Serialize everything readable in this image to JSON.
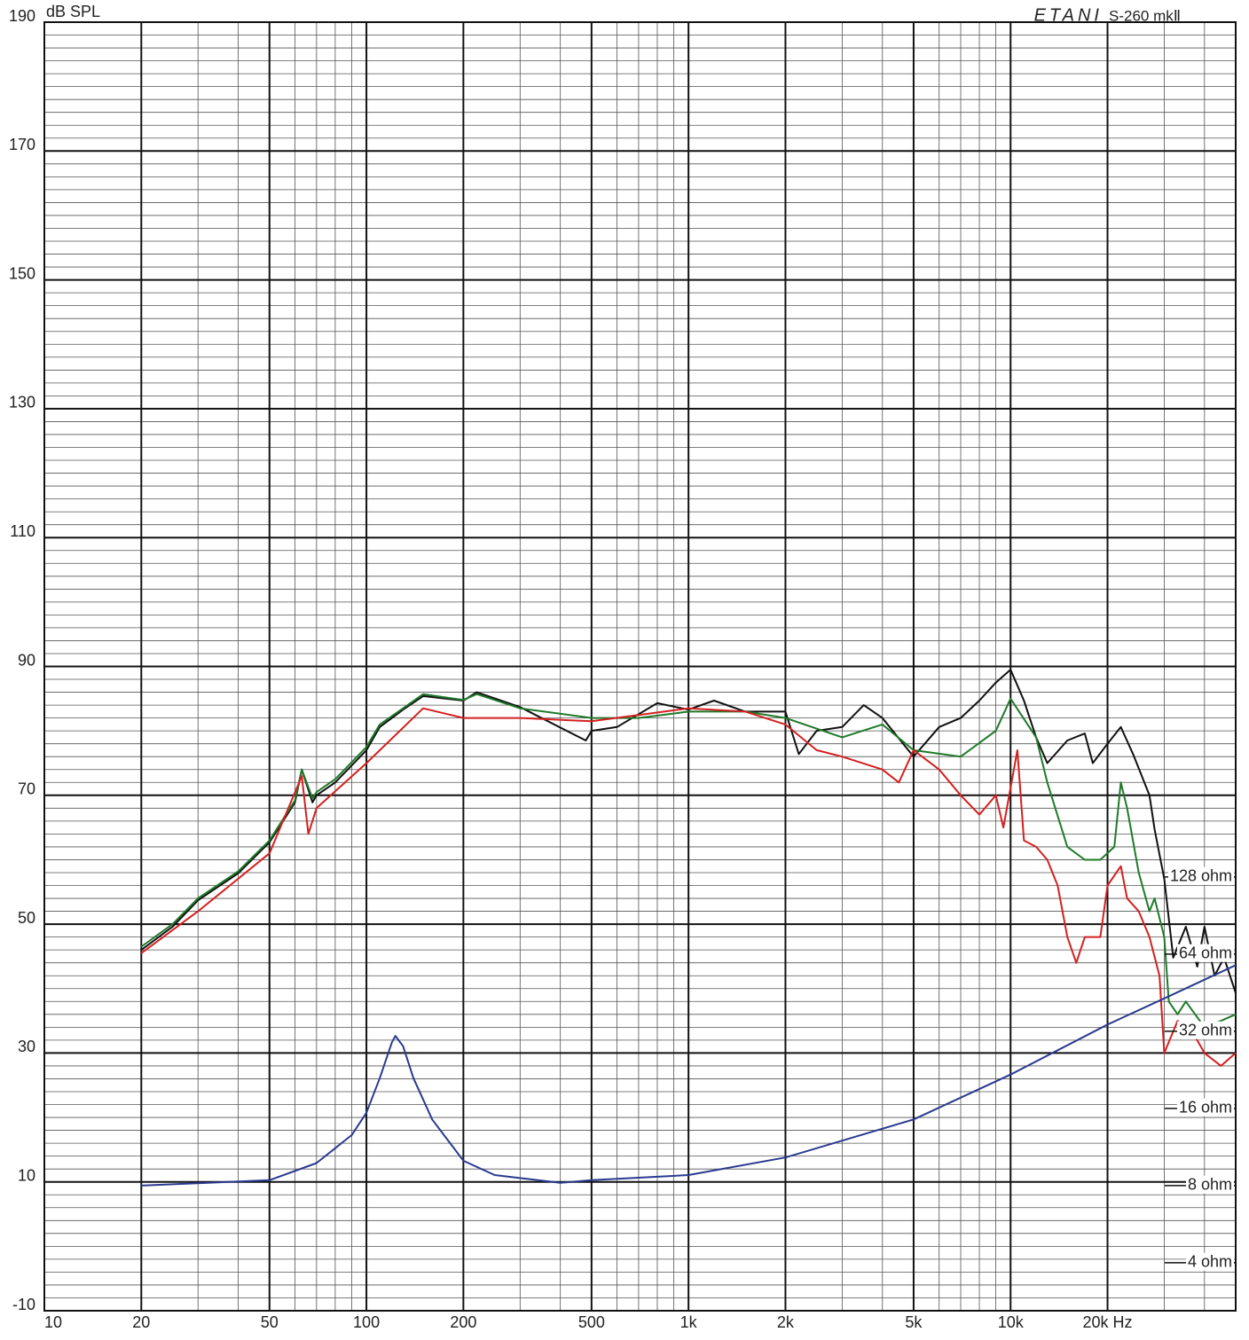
{
  "chart_data": {
    "type": "line",
    "title": "ETANI",
    "subtitle": "S-260 mkⅡ",
    "y_label": "dB SPL",
    "xlog": true,
    "xlim": [
      10,
      50000
    ],
    "xticks": [
      10,
      20,
      50,
      100,
      200,
      500,
      {
        "value": 1000,
        "label": "1k"
      },
      {
        "value": 2000,
        "label": "2k"
      },
      {
        "value": 5000,
        "label": "5k"
      },
      {
        "value": 10000,
        "label": "10k"
      },
      {
        "value": 20000,
        "label": "20k Hz"
      }
    ],
    "ylim": [
      -10,
      190
    ],
    "yticks": [
      -10,
      10,
      30,
      50,
      70,
      90,
      110,
      130,
      150,
      170,
      190
    ],
    "y2log": true,
    "y2lim": [
      2.6,
      277000
    ],
    "y2ticks": [
      {
        "value": 4,
        "label": "4 ohm"
      },
      {
        "value": 8,
        "label": "8 ohm"
      },
      {
        "value": 16,
        "label": "16 ohm"
      },
      {
        "value": 32,
        "label": "32 ohm"
      },
      {
        "value": 64,
        "label": "64 ohm"
      },
      {
        "value": 128,
        "label": "128 ohm"
      }
    ],
    "grid": true,
    "series": [
      {
        "color": "#111111",
        "x": [
          20,
          25,
          30,
          40,
          50,
          60,
          63,
          68,
          70,
          80,
          100,
          110,
          130,
          150,
          200,
          220,
          300,
          480,
          500,
          600,
          700,
          800,
          1000,
          1200,
          1500,
          2000,
          2200,
          2500,
          3000,
          3500,
          4000,
          5000,
          6000,
          7000,
          8000,
          9000,
          10000,
          11000,
          12000,
          13000,
          15000,
          17000,
          18000,
          20000,
          22000,
          24000,
          27000,
          28000,
          30000,
          32000,
          35000,
          38000,
          40000,
          43000,
          46000,
          50000
        ],
        "values": [
          46,
          49.6,
          53.7,
          57.9,
          62.7,
          68.9,
          74,
          68.9,
          70,
          72,
          77,
          80.6,
          83.3,
          85.4,
          84.7,
          86,
          83.7,
          78.5,
          80,
          80.6,
          82.6,
          84.3,
          83.3,
          84.7,
          83,
          83,
          76.4,
          80,
          80.6,
          84,
          82,
          76,
          80.6,
          82,
          84.7,
          87.5,
          89.5,
          84.7,
          79,
          75,
          78.5,
          79.6,
          75,
          78,
          80.6,
          76.4,
          70,
          64.7,
          57,
          44.8,
          49.6,
          43.4,
          49.6,
          42,
          44.8,
          39.3
        ]
      },
      {
        "color": "#1f7a2a",
        "x": [
          20,
          25,
          30,
          40,
          50,
          60,
          63,
          68,
          70,
          80,
          100,
          110,
          130,
          150,
          200,
          220,
          300,
          500,
          700,
          1000,
          1500,
          2000,
          3000,
          4000,
          5000,
          7000,
          9000,
          10000,
          12000,
          13000,
          15000,
          17000,
          19000,
          21000,
          22000,
          23000,
          25000,
          27000,
          28000,
          30000,
          31000,
          33000,
          35000,
          40000,
          45000,
          50000
        ],
        "values": [
          46.5,
          50,
          54,
          58.2,
          63,
          69.2,
          74,
          69.5,
          70.5,
          72.5,
          77.5,
          81,
          83.5,
          85.7,
          84.8,
          85.7,
          83.5,
          82,
          82,
          83,
          83,
          82,
          79,
          81,
          77,
          76,
          80,
          85,
          79,
          72,
          62,
          60,
          60,
          62,
          72,
          68,
          58,
          52,
          54,
          48,
          38,
          36,
          38,
          34,
          35,
          36
        ]
      },
      {
        "color": "#d42020",
        "x": [
          20,
          30,
          50,
          63,
          66,
          70,
          100,
          150,
          200,
          300,
          500,
          1000,
          1500,
          2000,
          2500,
          3000,
          4000,
          4500,
          5000,
          6000,
          7000,
          8000,
          9000,
          9500,
          10500,
          11000,
          12000,
          13000,
          14000,
          15000,
          16000,
          17000,
          19000,
          20000,
          22000,
          23000,
          25000,
          27000,
          29000,
          30000,
          33000,
          37000,
          40000,
          45000,
          50000
        ],
        "values": [
          45.5,
          52,
          61,
          73,
          64,
          68,
          75,
          83.5,
          82,
          82,
          81.5,
          83.5,
          83,
          81,
          77,
          76,
          74,
          72,
          77,
          74,
          70,
          67,
          70,
          65,
          77,
          63,
          62,
          60,
          56,
          48,
          44,
          48,
          48,
          56,
          59,
          54,
          52,
          48,
          42,
          30,
          35,
          33,
          30,
          28,
          30
        ]
      },
      {
        "color": "#2a3a8f",
        "axis": "y2",
        "x": [
          20,
          50,
          70,
          90,
          100,
          110,
          120,
          123,
          130,
          140,
          160,
          200,
          250,
          400,
          500,
          1000,
          2000,
          5000,
          10000,
          20000,
          30000,
          50000
        ],
        "values": [
          8,
          8.4,
          9.8,
          12.6,
          15.4,
          21,
          29,
          30.7,
          28,
          21,
          14.5,
          10,
          8.8,
          8.2,
          8.4,
          8.8,
          10.3,
          14.5,
          21.7,
          34,
          43,
          58
        ]
      }
    ]
  }
}
